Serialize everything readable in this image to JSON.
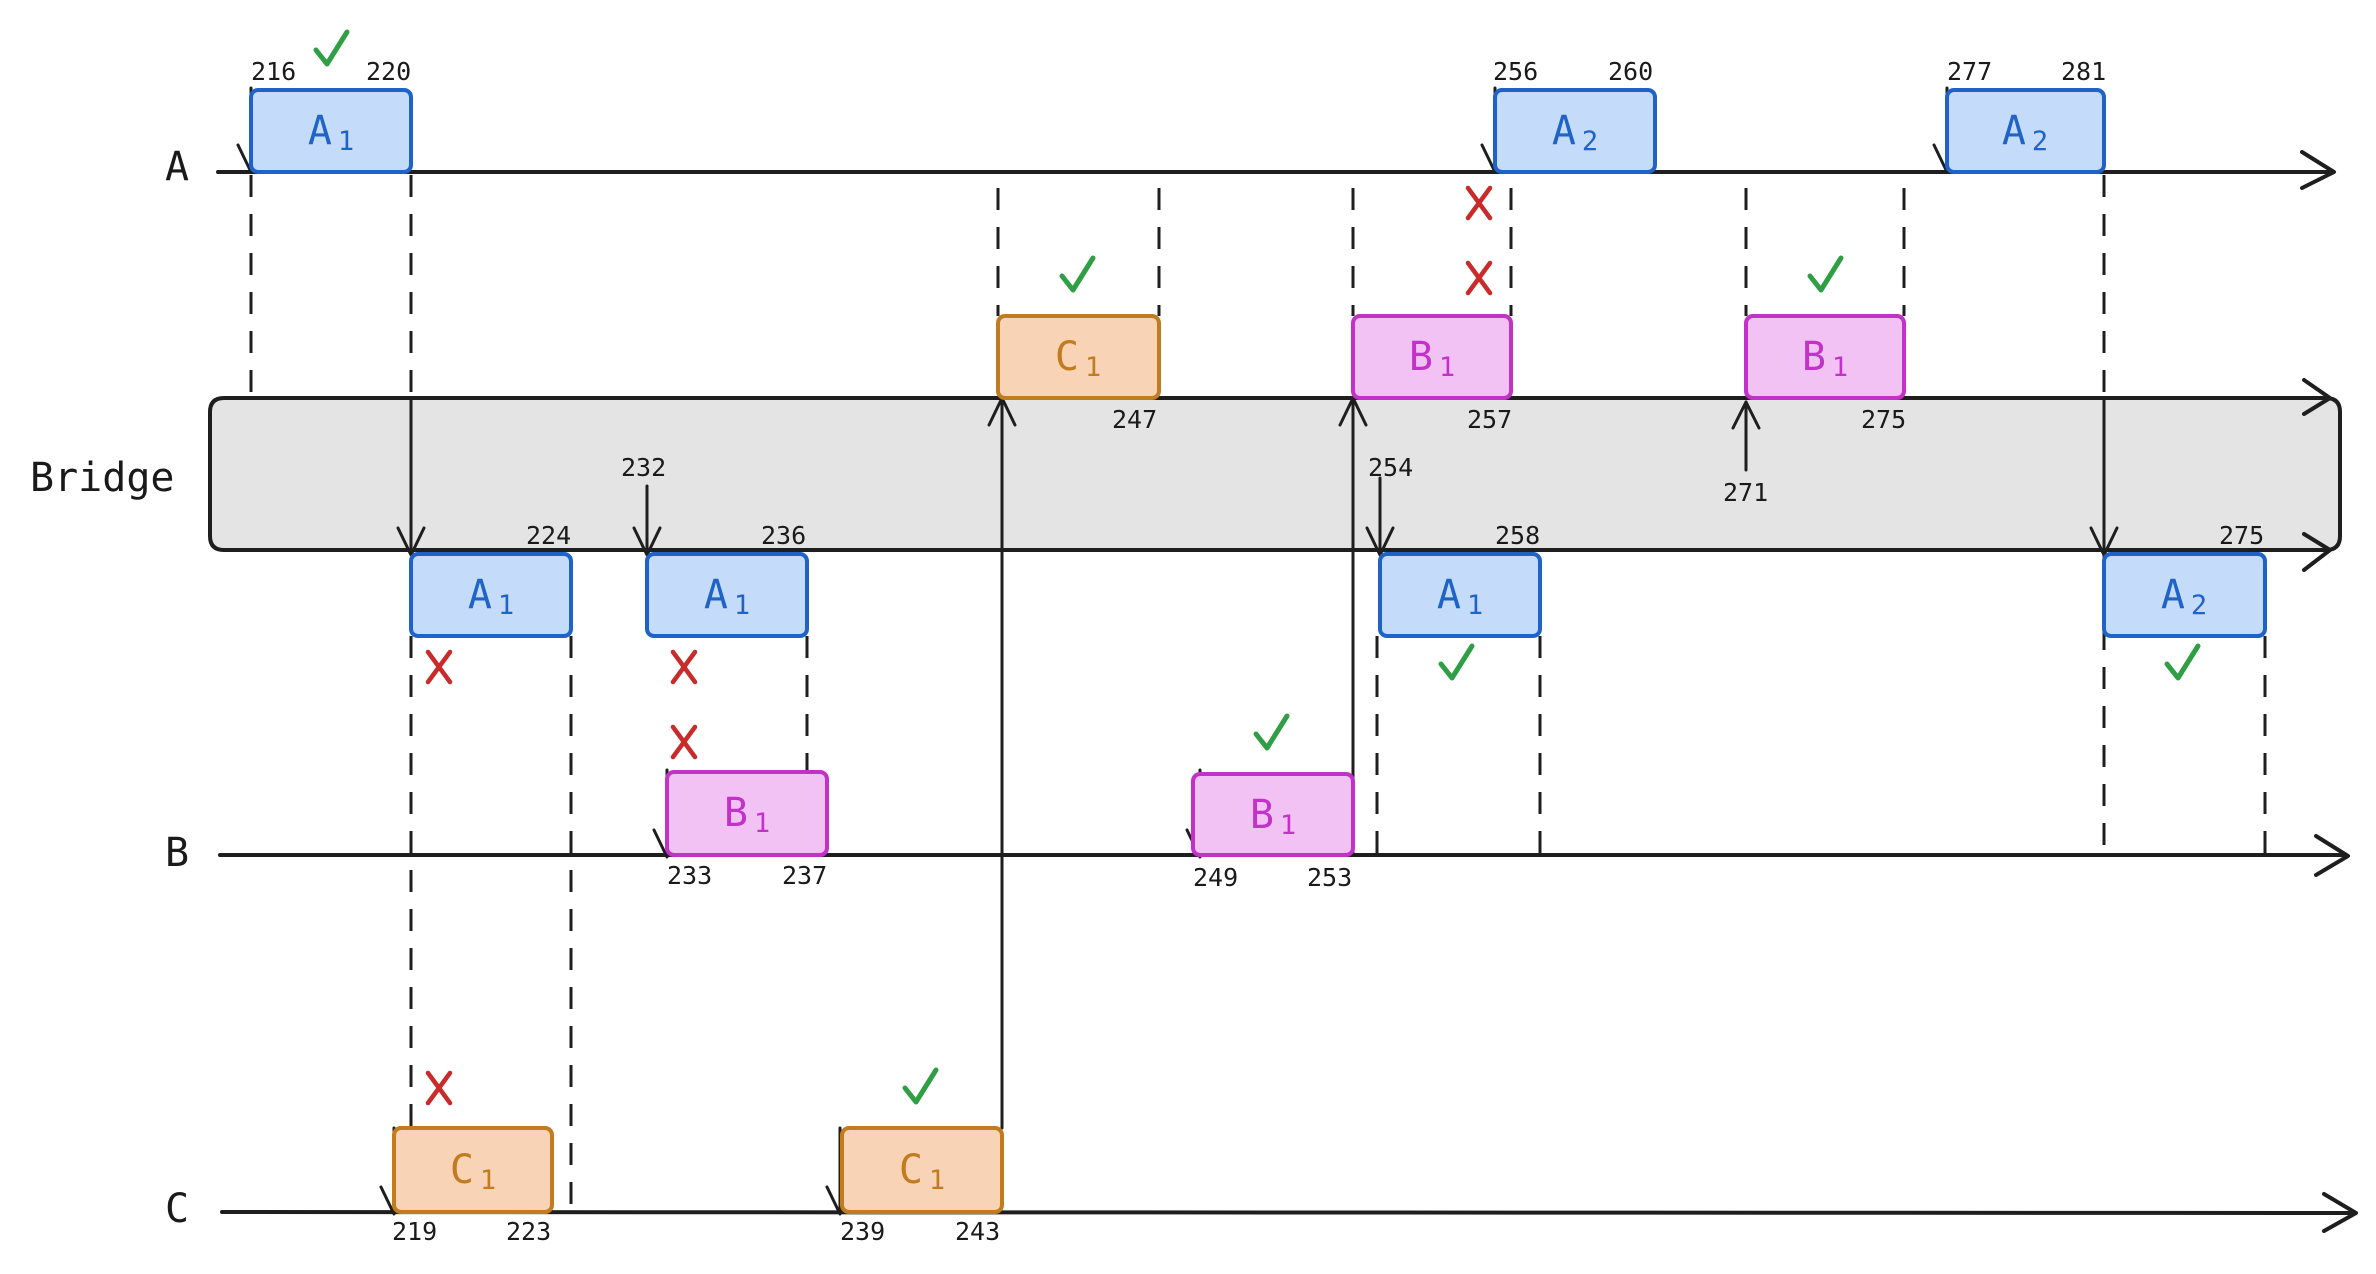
{
  "lanes": {
    "a": "A",
    "bridge": "Bridge",
    "b": "B",
    "c": "C"
  },
  "colors": {
    "a_fill": "#c5dbfa",
    "a_stroke": "#1f63c8",
    "b_fill": "#f3c2f5",
    "b_stroke": "#c232c8",
    "c_fill": "#f8d3b5",
    "c_stroke": "#c27b1e",
    "bridge_fill": "#e4e4e4",
    "ok": "#2f9e44",
    "no": "#c92a2a"
  },
  "blocks": {
    "a_a1": {
      "letter": "A",
      "sub": "1",
      "start": "216",
      "end": "220"
    },
    "a_a2_first": {
      "letter": "A",
      "sub": "2",
      "start": "256",
      "end": "260"
    },
    "a_a2_second": {
      "letter": "A",
      "sub": "2",
      "start": "277",
      "end": "281"
    },
    "mid_c1": {
      "letter": "C",
      "sub": "1",
      "end": "247"
    },
    "mid_b1_first": {
      "letter": "B",
      "sub": "1",
      "end": "257"
    },
    "mid_b1_second": {
      "letter": "B",
      "sub": "1",
      "end": "275"
    },
    "br_a1_first": {
      "letter": "A",
      "sub": "1",
      "end": "224"
    },
    "br_a1_second": {
      "letter": "A",
      "sub": "1",
      "end": "236"
    },
    "br_a1_third": {
      "letter": "A",
      "sub": "1",
      "end": "258"
    },
    "br_a2": {
      "letter": "A",
      "sub": "2",
      "end": "275"
    },
    "b_b1_first": {
      "letter": "B",
      "sub": "1",
      "start": "233",
      "end": "237"
    },
    "b_b1_second": {
      "letter": "B",
      "sub": "1",
      "start": "249",
      "end": "253"
    },
    "c_c1_first": {
      "letter": "C",
      "sub": "1",
      "start": "219",
      "end": "223"
    },
    "c_c1_second": {
      "letter": "C",
      "sub": "1",
      "start": "239",
      "end": "243"
    }
  },
  "bridge_ticks": {
    "t232": "232",
    "t254": "254",
    "t271": "271"
  },
  "status_icons": {
    "ok": "check-icon",
    "no": "cross-icon"
  }
}
